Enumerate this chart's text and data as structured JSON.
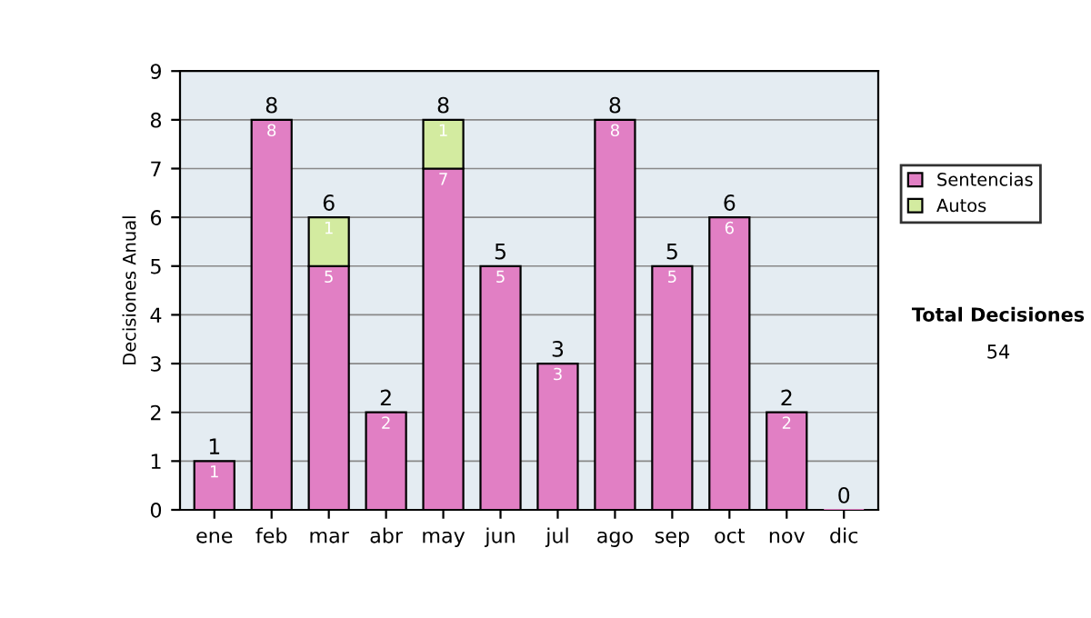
{
  "chart_data": {
    "type": "bar",
    "stacked": true,
    "ylabel": "Decisiones Anual",
    "categories": [
      "ene",
      "feb",
      "mar",
      "abr",
      "may",
      "jun",
      "jul",
      "ago",
      "sep",
      "oct",
      "nov",
      "dic"
    ],
    "series": [
      {
        "name": "Sentencias",
        "color": "#e17fc4",
        "values": [
          1,
          8,
          5,
          2,
          7,
          5,
          3,
          8,
          5,
          6,
          2,
          0
        ],
        "value_labels": [
          "1",
          "8",
          "5",
          "2",
          "7",
          "5",
          "3",
          "8",
          "5",
          "6",
          "2",
          null
        ]
      },
      {
        "name": "Autos",
        "color": "#d3eba0",
        "values": [
          null,
          null,
          1,
          null,
          1,
          null,
          null,
          null,
          null,
          null,
          null,
          null
        ],
        "value_labels": [
          null,
          null,
          "1",
          null,
          "1",
          null,
          null,
          null,
          null,
          null,
          null,
          null
        ]
      }
    ],
    "totals": [
      "1",
      "8",
      "6",
      "2",
      "8",
      "5",
      "3",
      "8",
      "5",
      "6",
      "2",
      "0"
    ],
    "ylim": [
      0,
      9
    ],
    "yticks": [
      0,
      1,
      2,
      3,
      4,
      5,
      6,
      7,
      8,
      9
    ],
    "grid": "y",
    "legend": "right",
    "annotations": [
      "Total Decisiones",
      "54"
    ]
  }
}
